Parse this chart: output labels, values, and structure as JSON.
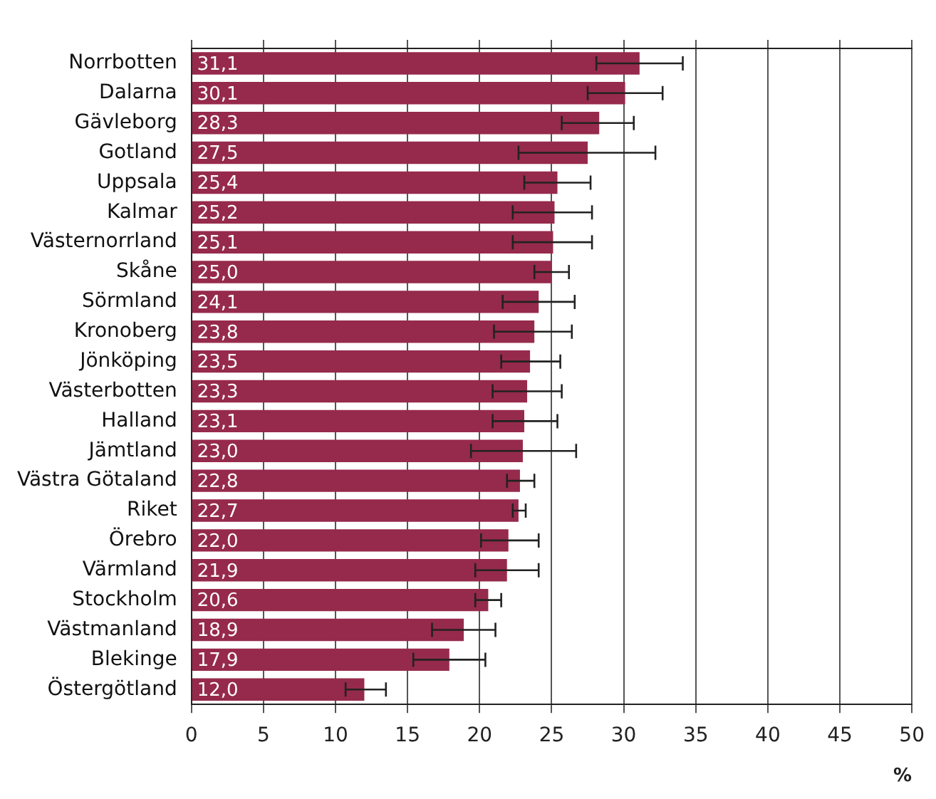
{
  "chart_data": {
    "type": "bar",
    "orientation": "horizontal",
    "xlabel": "%",
    "categories": [
      "Norrbotten",
      "Dalarna",
      "Gävleborg",
      "Gotland",
      "Uppsala",
      "Kalmar",
      "Västernorrland",
      "Skåne",
      "Sörmland",
      "Kronoberg",
      "Jönköping",
      "Västerbotten",
      "Halland",
      "Jämtland",
      "Västra Götaland",
      "Riket",
      "Örebro",
      "Värmland",
      "Stockholm",
      "Västmanland",
      "Blekinge",
      "Östergötland"
    ],
    "values": [
      31.1,
      30.1,
      28.3,
      27.5,
      25.4,
      25.2,
      25.1,
      25.0,
      24.1,
      23.8,
      23.5,
      23.3,
      23.1,
      23.0,
      22.8,
      22.7,
      22.0,
      21.9,
      20.6,
      18.9,
      17.9,
      12.0
    ],
    "value_labels": [
      "31,1",
      "30,1",
      "28,3",
      "27,5",
      "25,4",
      "25,2",
      "25,1",
      "25,0",
      "24,1",
      "23,8",
      "23,5",
      "23,3",
      "23,1",
      "23,0",
      "22,8",
      "22,7",
      "22,0",
      "21,9",
      "20,6",
      "18,9",
      "17,9",
      "12,0"
    ],
    "errors": [
      [
        28.1,
        34.1
      ],
      [
        27.5,
        32.7
      ],
      [
        25.7,
        30.7
      ],
      [
        22.7,
        32.2
      ],
      [
        23.1,
        27.7
      ],
      [
        22.3,
        27.8
      ],
      [
        22.3,
        27.8
      ],
      [
        23.8,
        26.2
      ],
      [
        21.6,
        26.6
      ],
      [
        21.0,
        26.4
      ],
      [
        21.5,
        25.6
      ],
      [
        20.9,
        25.7
      ],
      [
        20.9,
        25.4
      ],
      [
        19.4,
        26.7
      ],
      [
        21.9,
        23.8
      ],
      [
        22.3,
        23.2
      ],
      [
        20.1,
        24.1
      ],
      [
        19.7,
        24.1
      ],
      [
        19.7,
        21.5
      ],
      [
        16.7,
        21.1
      ],
      [
        15.4,
        20.4
      ],
      [
        10.7,
        13.5
      ]
    ],
    "color": "#962a4c",
    "xlim": [
      0,
      50
    ],
    "xticks": [
      0,
      5,
      10,
      15,
      20,
      25,
      30,
      35,
      40,
      45,
      50
    ],
    "grid": "x",
    "legend": false
  }
}
